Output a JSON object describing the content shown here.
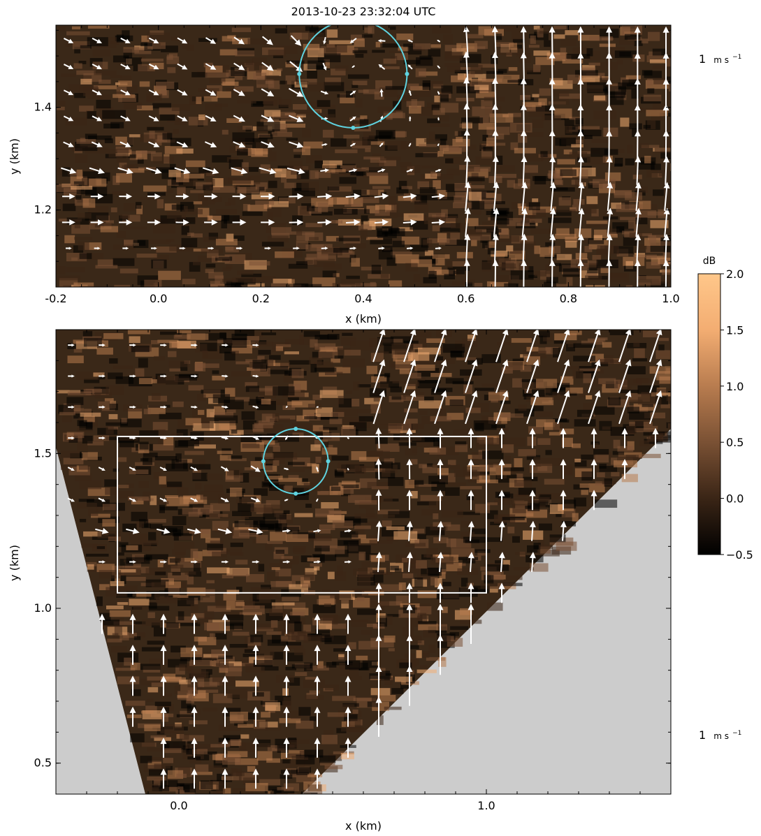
{
  "title": "2013-10-23 23:32:04 UTC",
  "colors": {
    "ground_fill": "#cccccc",
    "circle": "#5fd3e0",
    "box": "#ffffff",
    "vectors": "#ffffff",
    "colormap": [
      "#000000",
      "#3a2516",
      "#7a5134",
      "#b87c4f",
      "#f3ad72",
      "#ffc78a"
    ]
  },
  "chart_data": [
    {
      "type": "quiver",
      "panel": "top",
      "title": "2013-10-23 23:32:04 UTC",
      "xlabel": "x (km)",
      "ylabel": "y (km)",
      "xlim": [
        -0.2,
        1.0
      ],
      "ylim": [
        1.05,
        1.56
      ],
      "xticks": [
        -0.2,
        0.0,
        0.2,
        0.4,
        0.6,
        0.8,
        1.0
      ],
      "xtick_labels": [
        "-0.2",
        "0.0",
        "0.2",
        "0.4",
        "0.6",
        "0.8",
        "1.0"
      ],
      "yticks": [
        1.2,
        1.4
      ],
      "ytick_labels": [
        "1.2",
        "1.4"
      ],
      "background": "radar reflectivity field (dB)",
      "circle": {
        "center": [
          0.38,
          1.465
        ],
        "radius_km": 0.105
      },
      "reference_vector": {
        "label": "1",
        "unit": "m s",
        "exponent": "−1",
        "speed_ms": 1
      },
      "vector_field": "rotating eddy centred near x=0.38, y=1.47 with strong eastward flow near y=1.15–1.25 and northward flow for x>0.6"
    },
    {
      "type": "quiver",
      "panel": "bottom",
      "xlabel": "x (km)",
      "ylabel": "y (km)",
      "xlim": [
        -0.4,
        1.6
      ],
      "ylim": [
        0.4,
        1.9
      ],
      "xticks": [
        0.0,
        1.0
      ],
      "xtick_labels": [
        "0.0",
        "1.0"
      ],
      "yticks": [
        0.5,
        1.0,
        1.5
      ],
      "ytick_labels": [
        "0.5",
        "1.0",
        "1.5"
      ],
      "background": "radar reflectivity field (dB)",
      "circle": {
        "center": [
          0.38,
          1.475
        ],
        "radius_km": 0.105
      },
      "box": {
        "x": [
          -0.2,
          1.0
        ],
        "y": [
          1.05,
          1.555
        ]
      },
      "no_data_region": "grey area outside the radar sector",
      "reference_vector": {
        "label": "1",
        "unit": "m s",
        "exponent": "−1",
        "speed_ms": 1
      },
      "vector_field": "northward flow below y=1.0, rotating eddy near x=0.38, y=1.47, north-eastward flow in the upper right"
    },
    {
      "type": "colorbar",
      "label": "dB",
      "range": [
        -0.5,
        2.0
      ],
      "ticks": [
        -0.5,
        0.0,
        0.5,
        1.0,
        1.5,
        2.0
      ],
      "tick_labels": [
        "−0.5",
        "0.0",
        "0.5",
        "1.0",
        "1.5",
        "2.0"
      ]
    }
  ]
}
